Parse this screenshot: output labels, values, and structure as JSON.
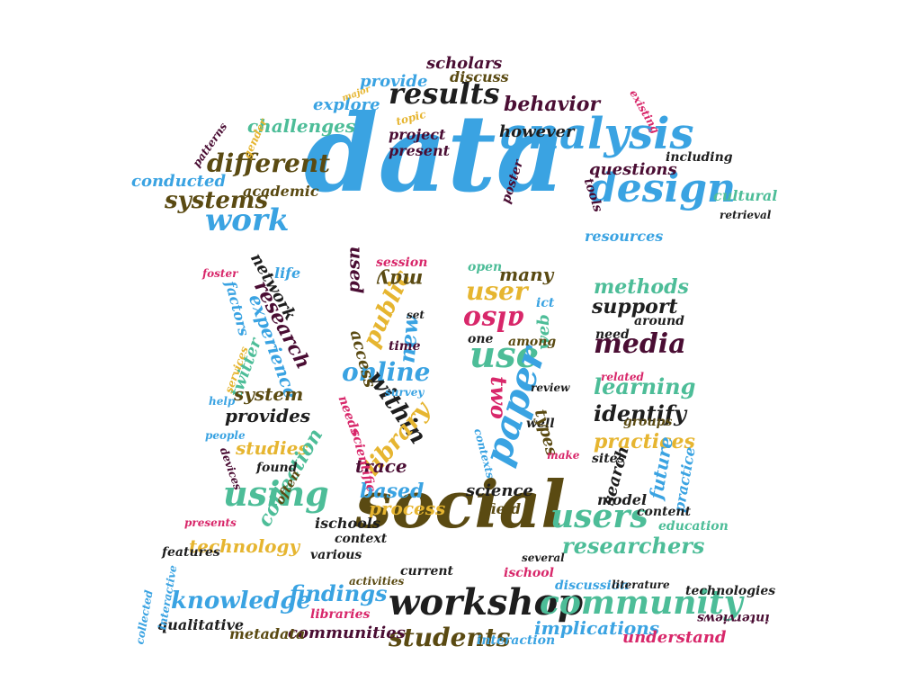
{
  "palette": {
    "blue": "#3aa3e2",
    "teal": "#4dbd98",
    "gold": "#e6b530",
    "pink": "#d8276a",
    "olive": "#5a4a12",
    "maroon": "#4a0d33",
    "black": "#1e1e1e"
  },
  "words": [
    {
      "text": "data",
      "color": "blue"
    },
    {
      "text": "social",
      "color": "olive"
    },
    {
      "text": "analysis",
      "color": "blue"
    },
    {
      "text": "design",
      "color": "blue"
    },
    {
      "text": "workshop",
      "color": "black"
    },
    {
      "text": "community",
      "color": "teal"
    },
    {
      "text": "results",
      "color": "black"
    },
    {
      "text": "different",
      "color": "olive"
    },
    {
      "text": "work",
      "color": "blue"
    },
    {
      "text": "systems",
      "color": "olive"
    },
    {
      "text": "users",
      "color": "teal"
    },
    {
      "text": "using",
      "color": "teal"
    },
    {
      "text": "use",
      "color": "teal"
    },
    {
      "text": "paper",
      "color": "blue"
    },
    {
      "text": "media",
      "color": "maroon"
    },
    {
      "text": "knowledge",
      "color": "blue"
    },
    {
      "text": "findings",
      "color": "blue"
    },
    {
      "text": "students",
      "color": "olive"
    },
    {
      "text": "researchers",
      "color": "teal"
    },
    {
      "text": "behavior",
      "color": "maroon"
    },
    {
      "text": "challenges",
      "color": "teal"
    },
    {
      "text": "questions",
      "color": "maroon"
    },
    {
      "text": "present",
      "color": "maroon"
    },
    {
      "text": "project",
      "color": "maroon"
    },
    {
      "text": "however",
      "color": "black"
    },
    {
      "text": "explore",
      "color": "blue"
    },
    {
      "text": "provide",
      "color": "blue"
    },
    {
      "text": "discuss",
      "color": "olive"
    },
    {
      "text": "scholars",
      "color": "maroon"
    },
    {
      "text": "conducted",
      "color": "blue"
    },
    {
      "text": "academic",
      "color": "olive"
    },
    {
      "text": "resources",
      "color": "blue"
    },
    {
      "text": "cultural",
      "color": "teal"
    },
    {
      "text": "retrieval",
      "color": "black"
    },
    {
      "text": "including",
      "color": "black"
    },
    {
      "text": "tools",
      "color": "maroon"
    },
    {
      "text": "poster",
      "color": "maroon"
    },
    {
      "text": "patterns",
      "color": "maroon"
    },
    {
      "text": "gender",
      "color": "gold"
    },
    {
      "text": "major",
      "color": "gold"
    },
    {
      "text": "topic",
      "color": "gold"
    },
    {
      "text": "existing",
      "color": "pink"
    },
    {
      "text": "online",
      "color": "blue"
    },
    {
      "text": "user",
      "color": "gold"
    },
    {
      "text": "also",
      "color": "pink"
    },
    {
      "text": "public",
      "color": "gold"
    },
    {
      "text": "new",
      "color": "blue"
    },
    {
      "text": "may",
      "color": "olive"
    },
    {
      "text": "used",
      "color": "maroon"
    },
    {
      "text": "session",
      "color": "pink"
    },
    {
      "text": "open",
      "color": "teal"
    },
    {
      "text": "many",
      "color": "olive"
    },
    {
      "text": "ict",
      "color": "blue"
    },
    {
      "text": "web",
      "color": "teal"
    },
    {
      "text": "one",
      "color": "black"
    },
    {
      "text": "among",
      "color": "olive"
    },
    {
      "text": "two",
      "color": "pink"
    },
    {
      "text": "within",
      "color": "black"
    },
    {
      "text": "library",
      "color": "gold"
    },
    {
      "text": "trace",
      "color": "maroon"
    },
    {
      "text": "based",
      "color": "blue"
    },
    {
      "text": "process",
      "color": "gold"
    },
    {
      "text": "science",
      "color": "black"
    },
    {
      "text": "field",
      "color": "olive"
    },
    {
      "text": "methods",
      "color": "teal"
    },
    {
      "text": "support",
      "color": "black"
    },
    {
      "text": "around",
      "color": "black"
    },
    {
      "text": "need",
      "color": "black"
    },
    {
      "text": "learning",
      "color": "teal"
    },
    {
      "text": "identify",
      "color": "black"
    },
    {
      "text": "groups",
      "color": "olive"
    },
    {
      "text": "practices",
      "color": "gold"
    },
    {
      "text": "sites",
      "color": "black"
    },
    {
      "text": "search",
      "color": "black"
    },
    {
      "text": "future",
      "color": "blue"
    },
    {
      "text": "practice",
      "color": "blue"
    },
    {
      "text": "model",
      "color": "black"
    },
    {
      "text": "content",
      "color": "black"
    },
    {
      "text": "education",
      "color": "teal"
    },
    {
      "text": "network",
      "color": "black"
    },
    {
      "text": "life",
      "color": "blue"
    },
    {
      "text": "foster",
      "color": "pink"
    },
    {
      "text": "factors",
      "color": "blue"
    },
    {
      "text": "research",
      "color": "maroon"
    },
    {
      "text": "experience",
      "color": "blue"
    },
    {
      "text": "twitter",
      "color": "teal"
    },
    {
      "text": "services",
      "color": "gold"
    },
    {
      "text": "system",
      "color": "olive"
    },
    {
      "text": "provides",
      "color": "black"
    },
    {
      "text": "studies",
      "color": "gold"
    },
    {
      "text": "collection",
      "color": "teal"
    },
    {
      "text": "found",
      "color": "black"
    },
    {
      "text": "often",
      "color": "olive"
    },
    {
      "text": "help",
      "color": "blue"
    },
    {
      "text": "people",
      "color": "blue"
    },
    {
      "text": "devices",
      "color": "maroon"
    },
    {
      "text": "technology",
      "color": "gold"
    },
    {
      "text": "presents",
      "color": "pink"
    },
    {
      "text": "features",
      "color": "black"
    },
    {
      "text": "ischools",
      "color": "black"
    },
    {
      "text": "context",
      "color": "black"
    },
    {
      "text": "various",
      "color": "black"
    },
    {
      "text": "access",
      "color": "olive"
    },
    {
      "text": "needs",
      "color": "pink"
    },
    {
      "text": "scientific",
      "color": "pink"
    },
    {
      "text": "time",
      "color": "maroon"
    },
    {
      "text": "survey",
      "color": "blue"
    },
    {
      "text": "review",
      "color": "black"
    },
    {
      "text": "well",
      "color": "black"
    },
    {
      "text": "types",
      "color": "olive"
    },
    {
      "text": "contexts",
      "color": "blue"
    },
    {
      "text": "make",
      "color": "pink"
    },
    {
      "text": "set",
      "color": "black"
    },
    {
      "text": "related",
      "color": "pink"
    },
    {
      "text": "several",
      "color": "black"
    },
    {
      "text": "current",
      "color": "black"
    },
    {
      "text": "activities",
      "color": "olive"
    },
    {
      "text": "ischool",
      "color": "pink"
    },
    {
      "text": "discussion",
      "color": "blue"
    },
    {
      "text": "literature",
      "color": "black"
    },
    {
      "text": "technologies",
      "color": "black"
    },
    {
      "text": "implications",
      "color": "blue"
    },
    {
      "text": "interviews",
      "color": "maroon"
    },
    {
      "text": "understand",
      "color": "pink"
    },
    {
      "text": "interaction",
      "color": "blue"
    },
    {
      "text": "communities",
      "color": "maroon"
    },
    {
      "text": "metadata",
      "color": "olive"
    },
    {
      "text": "qualitative",
      "color": "black"
    },
    {
      "text": "libraries",
      "color": "pink"
    },
    {
      "text": "interactive",
      "color": "blue"
    },
    {
      "text": "collected",
      "color": "blue"
    }
  ]
}
